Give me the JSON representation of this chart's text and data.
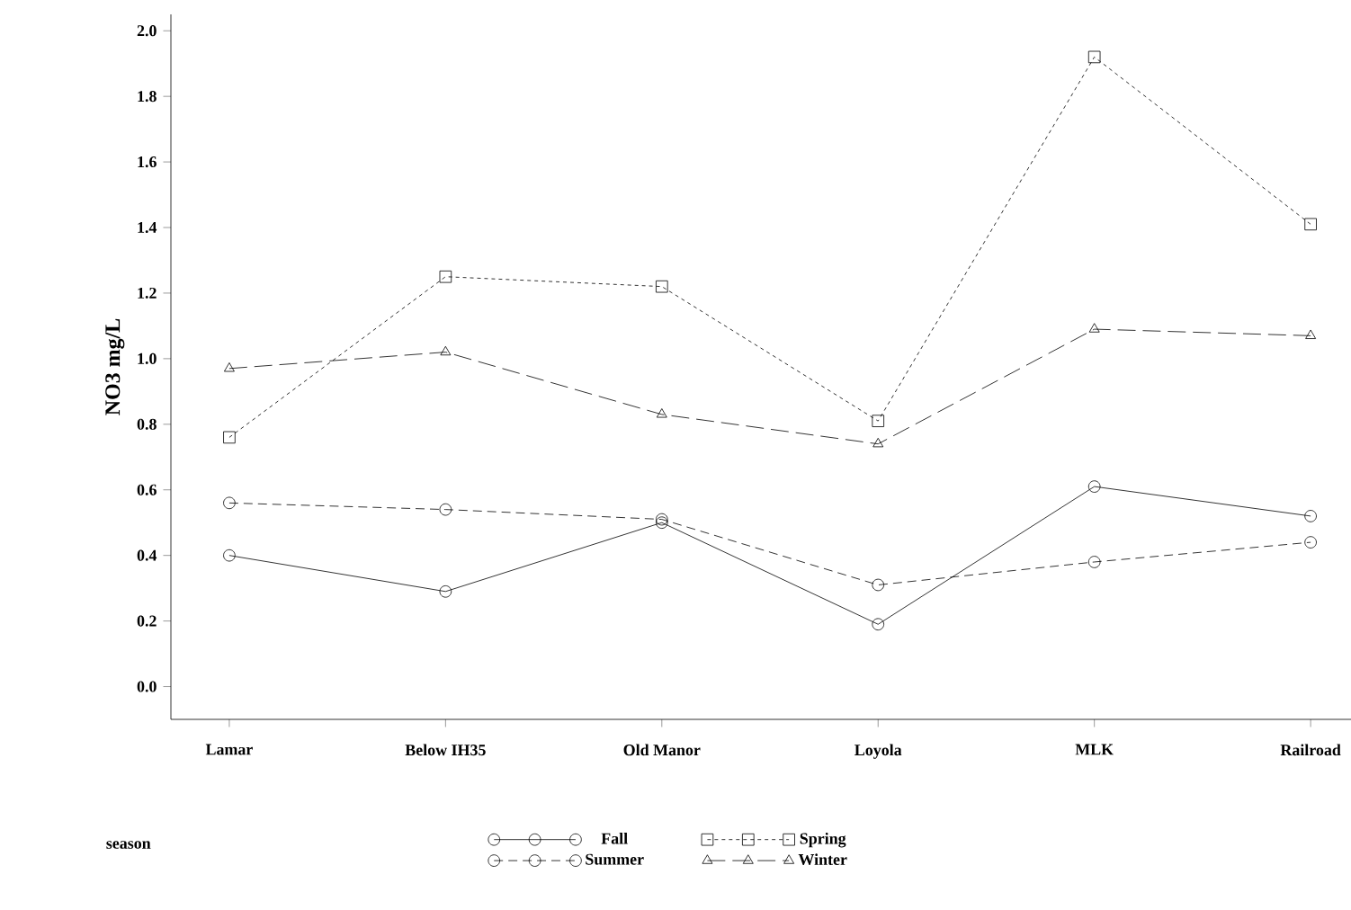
{
  "chart_data": {
    "type": "line",
    "ylabel": "NO3 mg/L",
    "legend_title": "season",
    "legend": "bottom",
    "grid": false,
    "categories": [
      "Lamar",
      "Below IH35",
      "Old Manor",
      "Loyola",
      "MLK",
      "Railroad"
    ],
    "ylim": [
      -0.1,
      2.05
    ],
    "yticks": [
      {
        "value": 0,
        "label": "0.0"
      },
      {
        "value": 0.2,
        "label": "0.2"
      },
      {
        "value": 0.4,
        "label": "0.4"
      },
      {
        "value": 0.6,
        "label": "0.6"
      },
      {
        "value": 0.8,
        "label": "0.8"
      },
      {
        "value": 1,
        "label": "1.0"
      },
      {
        "value": 1.2,
        "label": "1.2"
      },
      {
        "value": 1.4,
        "label": "1.4"
      },
      {
        "value": 1.6,
        "label": "1.6"
      },
      {
        "value": 1.8,
        "label": "1.8"
      },
      {
        "value": 2,
        "label": "2.0"
      }
    ],
    "series": [
      {
        "name": "Fall",
        "color": "#000000",
        "marker": "circle",
        "line_style": "solid",
        "values": [
          0.4,
          0.29,
          0.5,
          0.19,
          0.61,
          0.52
        ]
      },
      {
        "name": "Summer",
        "color": "#000000",
        "marker": "circle",
        "line_style": "dashed",
        "values": [
          0.56,
          0.54,
          0.51,
          0.31,
          0.38,
          0.44
        ]
      },
      {
        "name": "Spring",
        "color": "#000000",
        "marker": "square",
        "line_style": "dotted",
        "values": [
          0.76,
          1.25,
          1.22,
          0.81,
          1.92,
          1.41
        ]
      },
      {
        "name": "Winter",
        "color": "#000000",
        "marker": "triangle",
        "line_style": "longdash",
        "values": [
          0.97,
          1.02,
          0.83,
          0.74,
          1.09,
          1.07
        ]
      }
    ]
  }
}
